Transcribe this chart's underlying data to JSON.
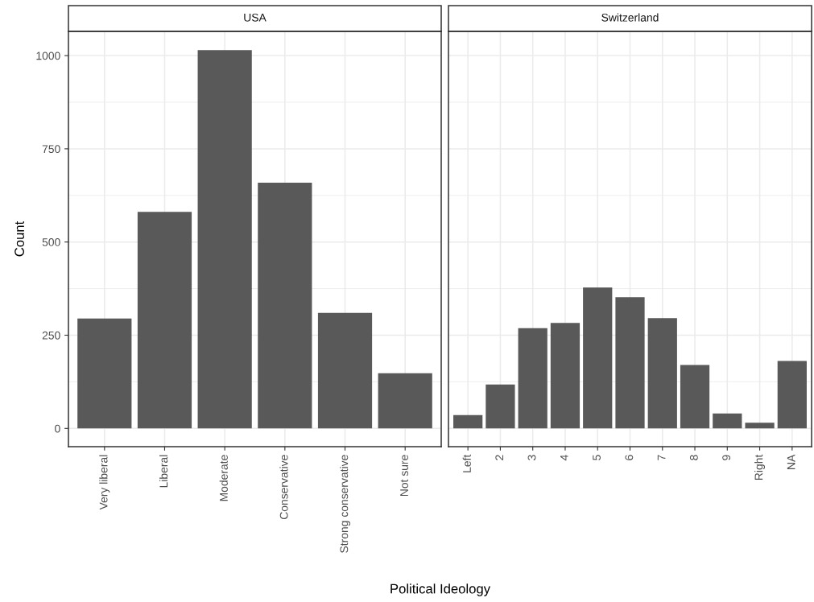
{
  "chart_data": [
    {
      "type": "bar",
      "title": "USA",
      "xlabel": "Political Ideology",
      "ylabel": "Count",
      "categories": [
        "Very liberal",
        "Liberal",
        "Moderate",
        "Conservative",
        "Strong conservative",
        "Not sure"
      ],
      "values": [
        295,
        581,
        1015,
        659,
        310,
        148
      ],
      "color": "#595959",
      "ylim": [
        -49,
        1065
      ],
      "yticks": [
        0,
        250,
        500,
        750,
        1000
      ],
      "grid": true
    },
    {
      "type": "bar",
      "title": "Switzerland",
      "categories": [
        "Left",
        "2",
        "3",
        "4",
        "5",
        "6",
        "7",
        "8",
        "9",
        "Right",
        "NA"
      ],
      "values": [
        36,
        118,
        269,
        283,
        378,
        352,
        296,
        170,
        40,
        15,
        181
      ],
      "color": "#595959",
      "ylim": [
        -49,
        1065
      ],
      "yticks": [
        0,
        250,
        500,
        750,
        1000
      ],
      "grid": true,
      "tick_labels": "x"
    }
  ]
}
